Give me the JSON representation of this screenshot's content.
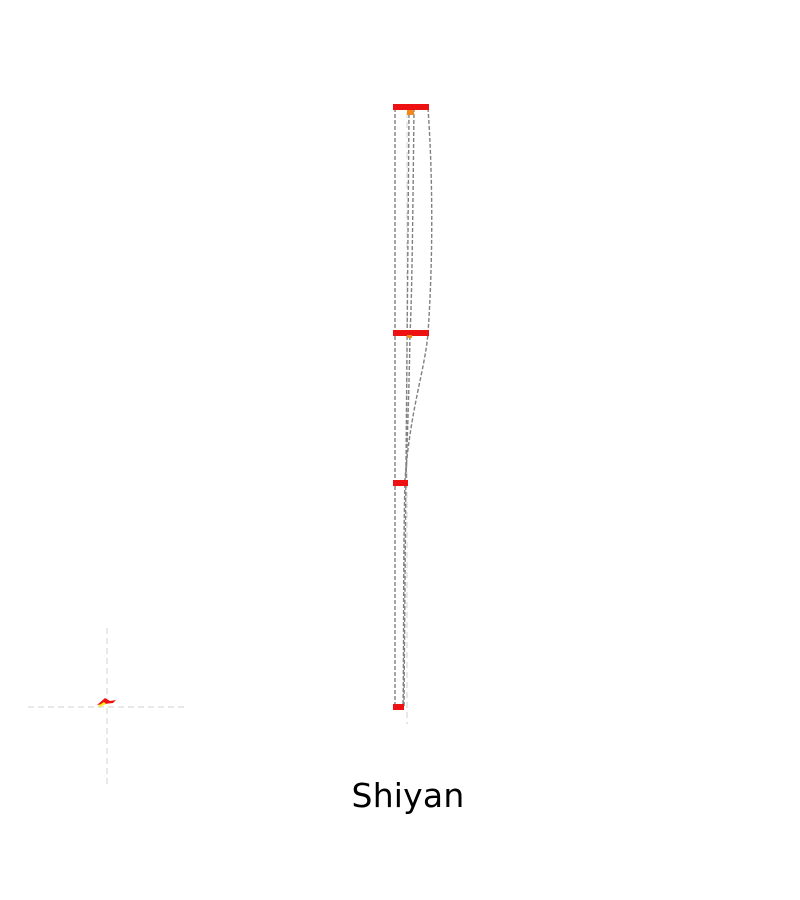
{
  "caption": "Shiyan",
  "colors": {
    "background": "#ffffff",
    "node": "#ee1111",
    "node_accent": "#f08a1e",
    "edge": "#808080",
    "guide": "#d0d0d0",
    "marker_primary": "#ee1111",
    "marker_secondary": "#ffee22"
  },
  "icons": {
    "origin_marker": "flame-icon"
  },
  "diagram": {
    "node_count": 4,
    "edge_count": 4
  }
}
